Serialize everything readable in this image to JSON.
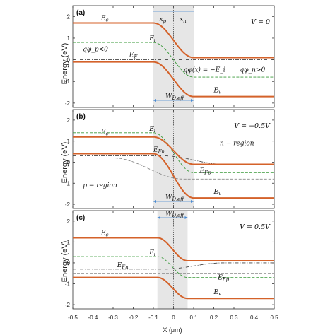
{
  "chart_data": {
    "type": "line",
    "xlabel": "X (μm)",
    "ylabel": "Energy (eV)",
    "xlim": [
      -0.5,
      0.5
    ],
    "ylim": [
      -2.2,
      2.5
    ],
    "x_ticks": [
      "-0.5",
      "-0.4",
      "-0.3",
      "-0.2",
      "-0.1",
      "0",
      "0.1",
      "0.2",
      "0.3",
      "0.4",
      "0.5"
    ],
    "y_ticks": [
      "-2",
      "-1",
      "0",
      "1",
      "2"
    ],
    "colors": {
      "Ec_Ev": "#d4622a",
      "Ei": "#3a9a3a",
      "Fermi": "#333333",
      "shade": "#e6e6e6"
    },
    "panels": [
      {
        "label": "(a)",
        "condition": "V = 0",
        "shaded_region": [
          -0.1,
          0.1
        ],
        "dotted_line_x": 0,
        "Ec": {
          "left": 1.7,
          "right": 0.1,
          "transition": [
            -0.1,
            0.1
          ]
        },
        "Ev": {
          "left": -0.1,
          "right": -1.7,
          "transition": [
            -0.1,
            0.1
          ]
        },
        "Ei": {
          "left": 0.8,
          "right": -0.8,
          "transition": [
            -0.1,
            0.1
          ]
        },
        "EF": {
          "value": 0.0
        },
        "annotations": {
          "Ec": "E_c",
          "Ei": "E_i",
          "EF": "E_F",
          "Ev": "E_v",
          "xp": "x_p",
          "xn": "x_n",
          "wd": "W_D,eff",
          "qphi_p": "qφ_p<0",
          "qphi_x": "qφ(x) = −E_i",
          "qphi_n": "qφ_n>0"
        }
      },
      {
        "label": "(b)",
        "condition": "V = −0.5V",
        "shaded_region": [
          -0.1,
          0.1
        ],
        "dotted_line_x": 0,
        "Ec": {
          "left": 1.2,
          "right": -0.1,
          "transition": [
            -0.1,
            0.1
          ]
        },
        "Ev": {
          "left": 0.4,
          "right": -1.7,
          "transition": [
            -0.1,
            0.1
          ]
        },
        "Ei": {
          "left": 1.4,
          "right": -0.5,
          "transition": [
            -0.1,
            0.1
          ]
        },
        "EFn": {
          "left": 0.3,
          "right": -0.1
        },
        "EFp": {
          "left": 0.2,
          "right": -0.8
        },
        "annotations": {
          "Ec": "E_c",
          "Ei": "E_i",
          "EFn": "E_Fn",
          "EFp": "E_Fp",
          "Ev": "E_v",
          "wd": "W_D,eff",
          "nregion": "n − region",
          "pregion": "p − region"
        }
      },
      {
        "label": "(c)",
        "condition": "V = 0.5V",
        "shaded_region": [
          -0.08,
          0.07
        ],
        "dotted_line_x": 0,
        "Ec": {
          "left": 1.2,
          "right": 0.1,
          "transition": [
            -0.08,
            0.07
          ]
        },
        "Ev": {
          "left": -0.7,
          "right": -1.7,
          "transition": [
            -0.08,
            0.07
          ]
        },
        "Ei": {
          "left": 0.3,
          "right": -0.7,
          "transition": [
            -0.08,
            0.07
          ]
        },
        "EFn": {
          "left": -0.3,
          "right": 0.0
        },
        "EFp": {
          "left": -0.5,
          "right": -0.5
        },
        "annotations": {
          "Ec": "E_c",
          "Ei": "E_i",
          "EFn": "E_Fn",
          "EFp": "E_Fp",
          "Ev": "E_v",
          "wd": "W_D,eff"
        }
      }
    ]
  }
}
